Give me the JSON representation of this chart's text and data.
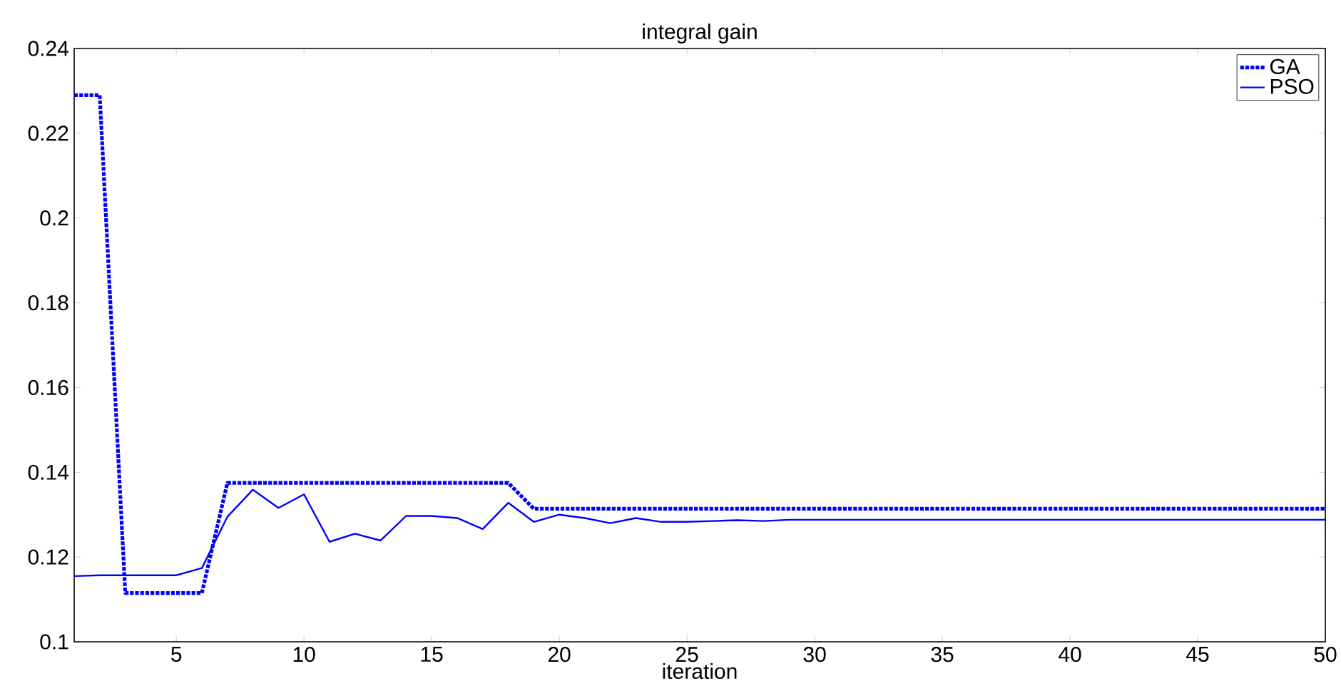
{
  "chart_data": {
    "type": "line",
    "title": "integral gain",
    "xlabel": "iteration",
    "x": [
      1,
      2,
      3,
      4,
      5,
      6,
      7,
      8,
      9,
      10,
      11,
      12,
      13,
      14,
      15,
      16,
      17,
      18,
      19,
      20,
      21,
      22,
      23,
      24,
      25,
      26,
      27,
      28,
      29,
      30,
      31,
      32,
      33,
      34,
      35,
      36,
      37,
      38,
      39,
      40,
      41,
      42,
      43,
      44,
      45,
      46,
      47,
      48,
      49,
      50
    ],
    "series": [
      {
        "name": "GA",
        "color": "#0000ff",
        "line_style": "dotted",
        "values": [
          0.229,
          0.229,
          0.1115,
          0.1115,
          0.1115,
          0.1115,
          0.1375,
          0.1375,
          0.1375,
          0.1375,
          0.1375,
          0.1375,
          0.1375,
          0.1375,
          0.1375,
          0.1375,
          0.1375,
          0.1375,
          0.1314,
          0.1314,
          0.1314,
          0.1314,
          0.1314,
          0.1314,
          0.1314,
          0.1314,
          0.1314,
          0.1314,
          0.1314,
          0.1314,
          0.1314,
          0.1314,
          0.1314,
          0.1314,
          0.1314,
          0.1314,
          0.1314,
          0.1314,
          0.1314,
          0.1314,
          0.1314,
          0.1314,
          0.1314,
          0.1314,
          0.1314,
          0.1314,
          0.1314,
          0.1314,
          0.1314,
          0.1314
        ]
      },
      {
        "name": "PSO",
        "color": "#0000ff",
        "line_style": "solid",
        "values": [
          0.1155,
          0.1157,
          0.1157,
          0.1157,
          0.1157,
          0.1174,
          0.1295,
          0.1359,
          0.1316,
          0.1348,
          0.1236,
          0.1255,
          0.1239,
          0.1297,
          0.1297,
          0.1292,
          0.1266,
          0.1328,
          0.1283,
          0.13,
          0.1292,
          0.128,
          0.1292,
          0.1283,
          0.1283,
          0.1285,
          0.1287,
          0.1285,
          0.1288,
          0.1288,
          0.1288,
          0.1288,
          0.1288,
          0.1288,
          0.1288,
          0.1288,
          0.1288,
          0.1288,
          0.1288,
          0.1288,
          0.1288,
          0.1288,
          0.1288,
          0.1288,
          0.1288,
          0.1288,
          0.1288,
          0.1288,
          0.1288,
          0.1288
        ]
      }
    ],
    "xlim": [
      1,
      50
    ],
    "xticks": [
      5,
      10,
      15,
      20,
      25,
      30,
      35,
      40,
      45,
      50
    ],
    "ylim": [
      0.1,
      0.24
    ],
    "yticks": [
      0.1,
      0.12,
      0.14,
      0.16,
      0.18,
      0.2,
      0.22,
      0.24
    ],
    "grid": false,
    "legend": "top right",
    "marker": "none"
  }
}
